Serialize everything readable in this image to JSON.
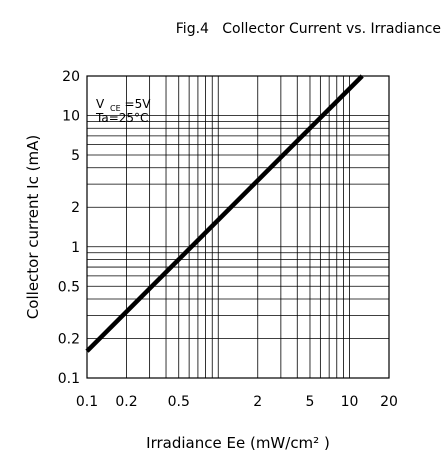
{
  "chart_data": {
    "type": "line",
    "title": "Fig.4   Collector Current vs. Irradiance",
    "xlabel": "Irradiance Ee (mW/cm² )",
    "ylabel": "Collector current Ic (mA)",
    "x_scale": "log",
    "y_scale": "log",
    "xlim": [
      0.1,
      20
    ],
    "ylim": [
      0.1,
      20
    ],
    "x_ticks": [
      {
        "value": 0.1,
        "label": "0.1"
      },
      {
        "value": 0.2,
        "label": "0.2"
      },
      {
        "value": 0.5,
        "label": "0.5"
      },
      {
        "value": 2,
        "label": "2"
      },
      {
        "value": 5,
        "label": "5"
      },
      {
        "value": 10,
        "label": "10"
      },
      {
        "value": 20,
        "label": "20"
      }
    ],
    "y_ticks": [
      {
        "value": 0.1,
        "label": "0.1"
      },
      {
        "value": 0.2,
        "label": "0.2"
      },
      {
        "value": 0.5,
        "label": "0.5"
      },
      {
        "value": 1,
        "label": "1"
      },
      {
        "value": 2,
        "label": "2"
      },
      {
        "value": 5,
        "label": "5"
      },
      {
        "value": 10,
        "label": "10"
      },
      {
        "value": 20,
        "label": "20"
      }
    ],
    "grid": true,
    "series": [
      {
        "x": [
          0.1,
          12.5
        ],
        "y": [
          0.16,
          20
        ]
      }
    ],
    "annotations": {
      "condition1_main": "V",
      "condition1_sub": "CE",
      "condition1_value": "=5V",
      "condition2": "Ta=25°C"
    }
  }
}
